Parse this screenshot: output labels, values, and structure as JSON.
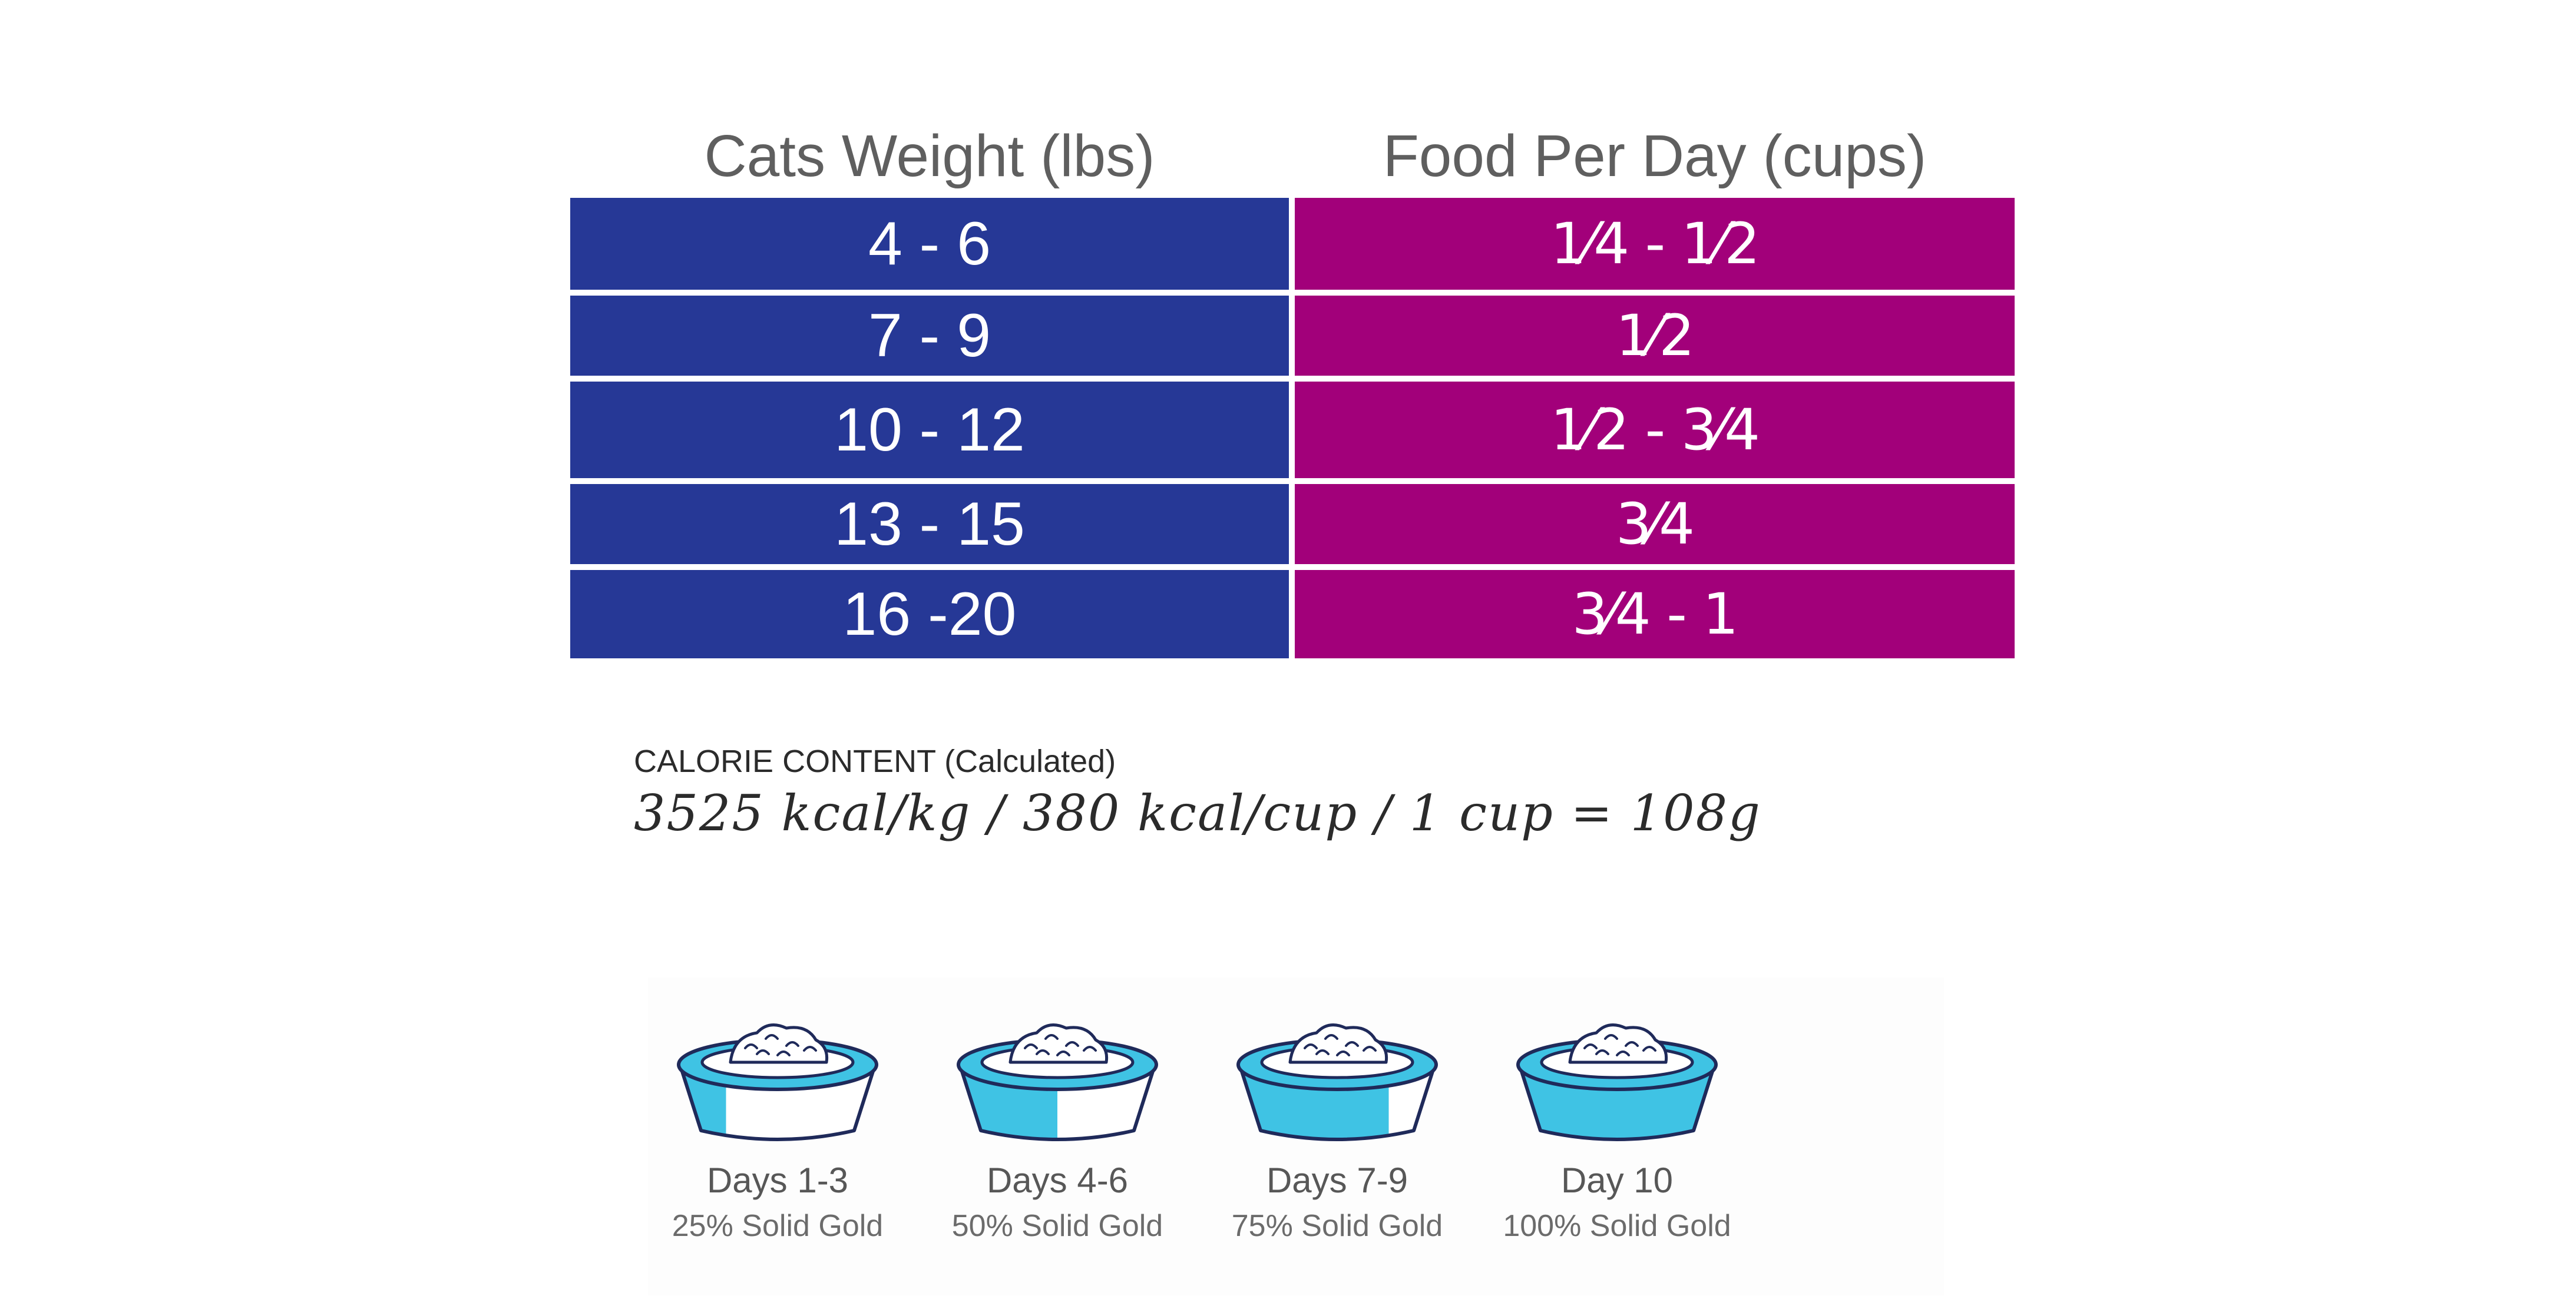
{
  "feeding_table": {
    "headers": {
      "weight": "Cats Weight (lbs)",
      "food": "Food Per Day (cups)"
    },
    "rows": [
      {
        "weight": "4 - 6",
        "food": "1⁄4 - 1⁄2"
      },
      {
        "weight": "7 - 9",
        "food": "1⁄2"
      },
      {
        "weight": "10 - 12",
        "food": "1⁄2 - 3⁄4"
      },
      {
        "weight": "13 - 15",
        "food": "3⁄4"
      },
      {
        "weight": "16 -20",
        "food": "3⁄4 - 1"
      }
    ],
    "colors": {
      "weight_bg": "#263896",
      "food_bg": "#a2007a",
      "header_text": "#5f5f5f"
    }
  },
  "calorie": {
    "title": "CALORIE CONTENT (Calculated)",
    "value": "3525 kcal/kg / 380 kcal/cup / 1 cup = 108g"
  },
  "transition": {
    "accent": "#3fc3e4",
    "outline": "#1f2a5a",
    "steps": [
      {
        "day": "Days 1-3",
        "pct": "25% Solid Gold",
        "fill_fraction": 0.25
      },
      {
        "day": "Days 4-6",
        "pct": "50% Solid Gold",
        "fill_fraction": 0.5
      },
      {
        "day": "Days 7-9",
        "pct": "75% Solid Gold",
        "fill_fraction": 0.75
      },
      {
        "day": "Day 10",
        "pct": "100% Solid Gold",
        "fill_fraction": 1.0
      }
    ]
  }
}
